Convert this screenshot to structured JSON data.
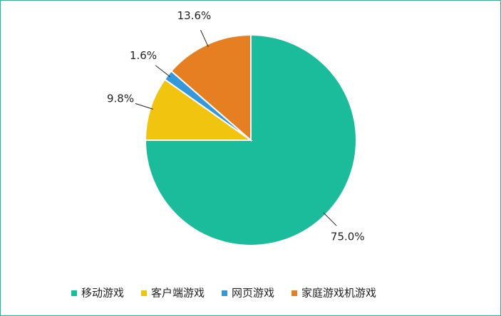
{
  "chart_data": {
    "type": "pie",
    "categories": [
      "移动游戏",
      "客户端游戏",
      "网页游戏",
      "家庭游戏机游戏"
    ],
    "values": [
      75.0,
      9.8,
      1.6,
      13.6
    ],
    "value_labels": [
      "75.0%",
      "9.8%",
      "1.6%",
      "13.6%"
    ],
    "colors": [
      "#1abc9c",
      "#f1c40f",
      "#3498db",
      "#e67e22"
    ],
    "legend": "bottom"
  }
}
